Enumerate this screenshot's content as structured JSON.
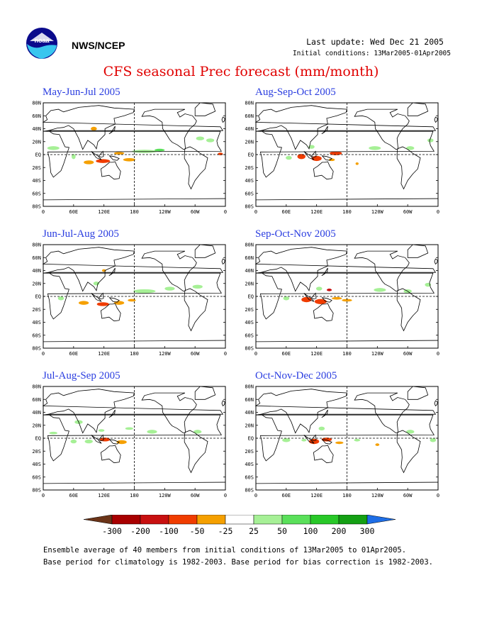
{
  "header": {
    "org": "NWS/NCEP",
    "last_update": "Last update: Wed Dec 21 2005",
    "initial_conditions": "Initial conditions: 13Mar2005-01Apr2005",
    "title": "CFS seasonal Prec forecast (mm/month)"
  },
  "logo": {
    "text": "noaa"
  },
  "map_axes": {
    "lat_labels": [
      "80N",
      "60N",
      "40N",
      "20N",
      "EQ",
      "20S",
      "40S",
      "60S",
      "80S"
    ],
    "lon_labels": [
      "0",
      "60E",
      "120E",
      "180",
      "120W",
      "60W",
      "0"
    ]
  },
  "panels": [
    {
      "title": "May-Jun-Jul 2005"
    },
    {
      "title": "Aug-Sep-Oct 2005"
    },
    {
      "title": "Jun-Jul-Aug 2005"
    },
    {
      "title": "Sep-Oct-Nov 2005"
    },
    {
      "title": "Jul-Aug-Sep 2005"
    },
    {
      "title": "Oct-Nov-Dec 2005"
    }
  ],
  "colorbar": {
    "labels": [
      "-300",
      "-200",
      "-100",
      "-50",
      "-25",
      "25",
      "50",
      "100",
      "200",
      "300"
    ],
    "colors": {
      "lt_m300": "#6b3418",
      "m300_m200": "#a80000",
      "m200_m100": "#c81010",
      "m100_m50": "#f03c00",
      "m50_m25": "#f5a000",
      "m25_25": "#ffffff",
      "25_50": "#a6f096",
      "50_100": "#5ae05a",
      "100_200": "#28c828",
      "200_300": "#14a014",
      "gt_300": "#1e6ee6"
    }
  },
  "footnote": {
    "line1": "Ensemble average of 40 members from initial conditions of 13Mar2005 to 01Apr2005.",
    "line2": "Base period for climatology is 1982-2003. Base period for bias correction is 1982-2003."
  }
}
